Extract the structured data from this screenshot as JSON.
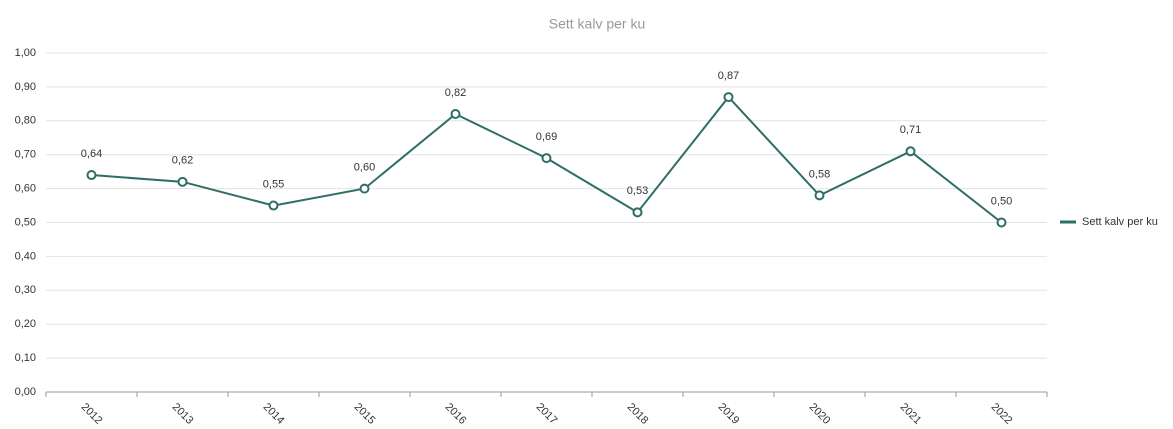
{
  "chart_data": {
    "type": "line",
    "title": "Sett kalv per ku",
    "categories": [
      "2012",
      "2013",
      "2014",
      "2015",
      "2016",
      "2017",
      "2018",
      "2019",
      "2020",
      "2021",
      "2022"
    ],
    "series": [
      {
        "name": "Sett kalv per ku",
        "color": "#2e6e66",
        "values": [
          0.64,
          0.62,
          0.55,
          0.6,
          0.82,
          0.69,
          0.53,
          0.87,
          0.58,
          0.71,
          0.5
        ],
        "value_labels": [
          "0,64",
          "0,62",
          "0,55",
          "0,60",
          "0,82",
          "0,69",
          "0,53",
          "0,87",
          "0,58",
          "0,71",
          "0,50"
        ]
      }
    ],
    "ylim": [
      0,
      1
    ],
    "yticks": [
      {
        "value": 0,
        "label": "0,00"
      },
      {
        "value": 0.1,
        "label": "0,10"
      },
      {
        "value": 0.2,
        "label": "0,20"
      },
      {
        "value": 0.3,
        "label": "0,30"
      },
      {
        "value": 0.4,
        "label": "0,40"
      },
      {
        "value": 0.5,
        "label": "0,50"
      },
      {
        "value": 0.6,
        "label": "0,60"
      },
      {
        "value": 0.7,
        "label": "0,70"
      },
      {
        "value": 0.8,
        "label": "0,80"
      },
      {
        "value": 0.9,
        "label": "0,90"
      },
      {
        "value": 1,
        "label": "1,00"
      }
    ],
    "grid": true,
    "legend": "right"
  }
}
